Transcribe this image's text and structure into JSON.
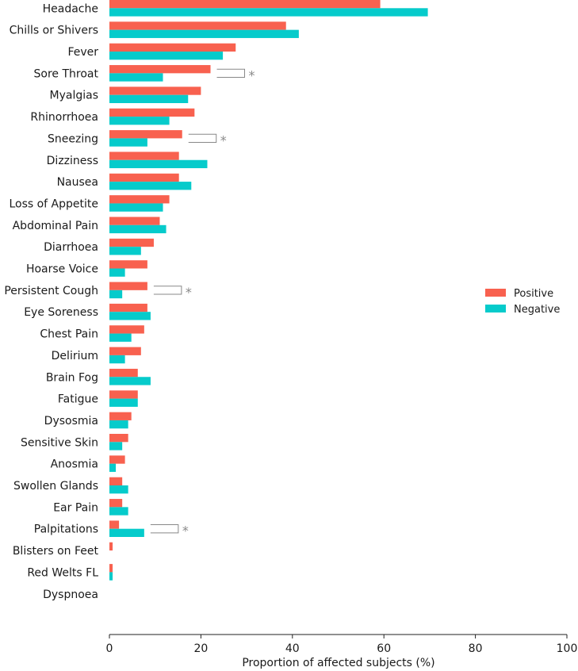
{
  "chart_data": {
    "type": "bar",
    "orientation": "horizontal",
    "xlabel": "Proportion of affected subjects (%)",
    "ylabel": "",
    "xlim": [
      0,
      100
    ],
    "xticks": [
      0,
      20,
      40,
      60,
      80,
      100
    ],
    "grid": false,
    "legend_position": "right",
    "categories": [
      "Headache",
      "Chills or Shivers",
      "Fever",
      "Sore Throat",
      "Myalgias",
      "Rhinorrhoea",
      "Sneezing",
      "Dizziness",
      "Nausea",
      "Loss of Appetite",
      "Abdominal Pain",
      "Diarrhoea",
      "Hoarse Voice",
      "Persistent Cough",
      "Eye Soreness",
      "Chest Pain",
      "Delirium",
      "Brain Fog",
      "Fatigue",
      "Dysosmia",
      "Sensitive Skin",
      "Anosmia",
      "Swollen Glands",
      "Ear Pain",
      "Palpitations",
      "Blisters on Feet",
      "Red Welts FL",
      "Dyspnoea"
    ],
    "series": [
      {
        "name": "Positive",
        "color": "#f8614f",
        "values": [
          59.2,
          38.6,
          27.6,
          22.1,
          20.0,
          18.6,
          15.9,
          15.2,
          15.2,
          13.1,
          11.0,
          9.7,
          8.3,
          8.3,
          8.3,
          7.6,
          6.9,
          6.2,
          6.2,
          4.8,
          4.1,
          3.4,
          2.8,
          2.8,
          2.1,
          0.7,
          0.7,
          0.0
        ]
      },
      {
        "name": "Negative",
        "color": "#06cbcb",
        "values": [
          69.6,
          41.4,
          24.8,
          11.7,
          17.2,
          13.1,
          8.3,
          21.4,
          17.9,
          11.7,
          12.4,
          6.9,
          3.4,
          2.8,
          9.0,
          4.8,
          3.4,
          9.0,
          6.2,
          4.1,
          2.8,
          1.4,
          4.1,
          4.1,
          7.6,
          0.0,
          0.7,
          0.0
        ]
      }
    ],
    "significance_markers": [
      {
        "category": "Sore Throat",
        "label": "*"
      },
      {
        "category": "Sneezing",
        "label": "*"
      },
      {
        "category": "Persistent Cough",
        "label": "*"
      },
      {
        "category": "Palpitations",
        "label": "*"
      }
    ],
    "bracket_color": "#888888"
  }
}
